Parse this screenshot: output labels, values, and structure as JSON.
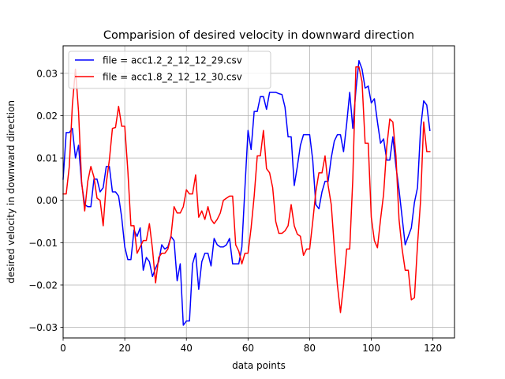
{
  "chart_data": {
    "type": "line",
    "title": "Comparision of desired velocity in downward direction",
    "xlabel": "data points",
    "ylabel": "desired velocity in downward direction",
    "xlim": [
      0,
      127
    ],
    "ylim": [
      -0.0325,
      0.0365
    ],
    "xticks": [
      0,
      20,
      40,
      60,
      80,
      100,
      120
    ],
    "yticks": [
      -0.03,
      -0.02,
      -0.01,
      0.0,
      0.01,
      0.02,
      0.03
    ],
    "xtick_labels": [
      "0",
      "20",
      "40",
      "60",
      "80",
      "100",
      "120"
    ],
    "ytick_labels": [
      "−0.03",
      "−0.02",
      "−0.01",
      "0.00",
      "0.01",
      "0.02",
      "0.03"
    ],
    "grid": true,
    "legend_position": "top-left",
    "series": [
      {
        "name": "file = acc1.2_2_12_12_29.csv",
        "color": "#0000ff",
        "values": [
          0.005,
          0.016,
          0.016,
          0.017,
          0.01,
          0.013,
          0.004,
          -0.001,
          -0.0015,
          -0.0015,
          0.005,
          0.005,
          0.002,
          0.003,
          0.008,
          0.008,
          0.002,
          0.002,
          0.001,
          -0.004,
          -0.011,
          -0.014,
          -0.014,
          -0.007,
          -0.0085,
          -0.0065,
          -0.0165,
          -0.0135,
          -0.0145,
          -0.018,
          -0.016,
          -0.0145,
          -0.0105,
          -0.0115,
          -0.011,
          -0.0085,
          -0.0095,
          -0.019,
          -0.015,
          -0.0295,
          -0.0285,
          -0.0285,
          -0.015,
          -0.0125,
          -0.021,
          -0.0145,
          -0.0125,
          -0.0125,
          -0.0155,
          -0.009,
          -0.0105,
          -0.011,
          -0.011,
          -0.0105,
          -0.009,
          -0.015,
          -0.015,
          -0.015,
          -0.011,
          0.003,
          0.0165,
          0.012,
          0.021,
          0.021,
          0.0245,
          0.0245,
          0.0215,
          0.0255,
          0.0255,
          0.0255,
          0.0252,
          0.025,
          0.022,
          0.015,
          0.015,
          0.0035,
          0.008,
          0.013,
          0.0155,
          0.0155,
          0.0155,
          0.0095,
          -0.001,
          -0.002,
          0.002,
          0.0045,
          0.0045,
          0.01,
          0.014,
          0.0155,
          0.0155,
          0.0115,
          0.018,
          0.0255,
          0.017,
          0.026,
          0.033,
          0.031,
          0.0265,
          0.027,
          0.023,
          0.024,
          0.0185,
          0.0135,
          0.0145,
          0.0095,
          0.0095,
          0.015,
          0.008,
          0.0025,
          -0.004,
          -0.0105,
          -0.0085,
          -0.0065,
          -0.0005,
          0.003,
          0.017,
          0.0235,
          0.0225,
          0.0165
        ]
      },
      {
        "name": "file = acc1.8_2_12_12_30.csv",
        "color": "#ff0000",
        "values": [
          0.0015,
          0.0015,
          0.008,
          0.0225,
          0.031,
          0.021,
          0.0045,
          -0.0025,
          0.0045,
          0.008,
          0.0055,
          0.0005,
          0.0,
          -0.006,
          0.004,
          0.0095,
          0.017,
          0.0172,
          0.0222,
          0.0175,
          0.0175,
          0.007,
          -0.006,
          -0.006,
          -0.0125,
          -0.011,
          -0.0095,
          -0.0095,
          -0.0055,
          -0.0115,
          -0.0195,
          -0.0135,
          -0.0125,
          -0.0125,
          -0.0115,
          -0.0085,
          -0.0015,
          -0.003,
          -0.003,
          -0.0015,
          0.0025,
          0.0015,
          0.0015,
          0.006,
          -0.004,
          -0.0025,
          -0.0045,
          -0.0015,
          -0.0045,
          -0.0055,
          -0.0045,
          -0.003,
          0.0,
          0.0005,
          0.001,
          0.001,
          -0.0105,
          -0.012,
          -0.015,
          -0.0125,
          -0.0125,
          -0.0065,
          0.001,
          0.0105,
          0.0105,
          0.0165,
          0.0075,
          0.0065,
          0.003,
          -0.005,
          -0.0078,
          -0.0078,
          -0.0072,
          -0.006,
          -0.001,
          -0.006,
          -0.008,
          -0.0085,
          -0.013,
          -0.0115,
          -0.0115,
          -0.005,
          0.002,
          0.0065,
          0.0065,
          0.0105,
          0.0035,
          -0.001,
          -0.011,
          -0.02,
          -0.0265,
          -0.02,
          -0.0115,
          -0.0115,
          0.005,
          0.0315,
          0.0315,
          0.028,
          0.0135,
          0.0135,
          -0.004,
          -0.0095,
          -0.0112,
          -0.0045,
          0.0015,
          0.0125,
          0.0192,
          0.0185,
          0.0105,
          -0.0045,
          -0.0115,
          -0.0165,
          -0.0165,
          -0.0235,
          -0.023,
          -0.0105,
          0.0,
          0.0185,
          0.0115,
          0.0115
        ]
      }
    ]
  }
}
